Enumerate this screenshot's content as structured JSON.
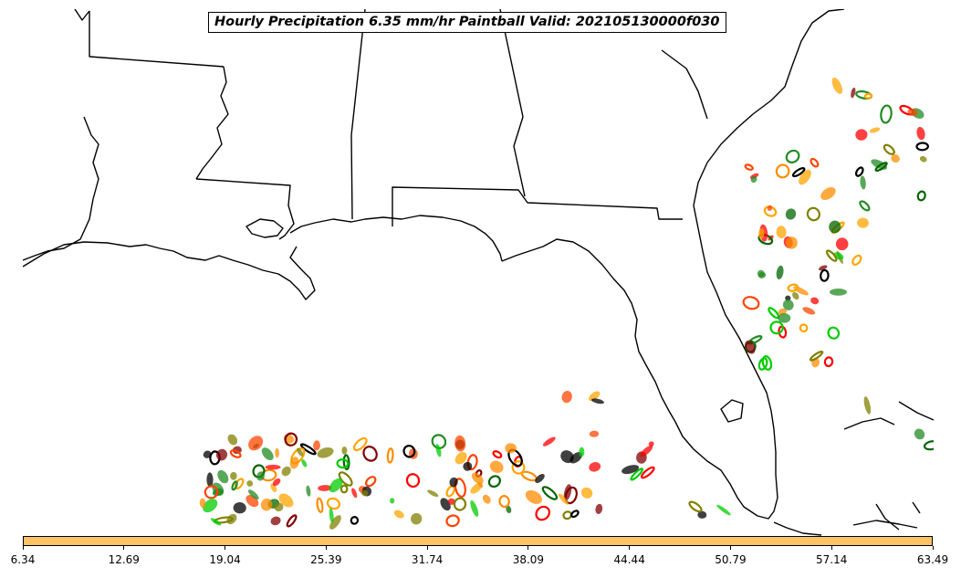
{
  "title": "Hourly Precipitation 6.35 mm/hr Paintball Valid: 202105130000f030",
  "colors": {
    "coastline": "#000000",
    "map_background": "#ffffff",
    "colorbar_fill": "#ffc266",
    "member_colors": [
      "#000000",
      "#ff0000",
      "#ff8c00",
      "#00cc00",
      "#808000",
      "#006400",
      "#800000",
      "#ffa500",
      "#ff4500",
      "#228b22"
    ]
  },
  "colorbar": {
    "ticks": [
      "6.34",
      "12.69",
      "19.04",
      "25.39",
      "31.74",
      "38.09",
      "44.44",
      "50.79",
      "57.14",
      "63.49"
    ]
  }
}
